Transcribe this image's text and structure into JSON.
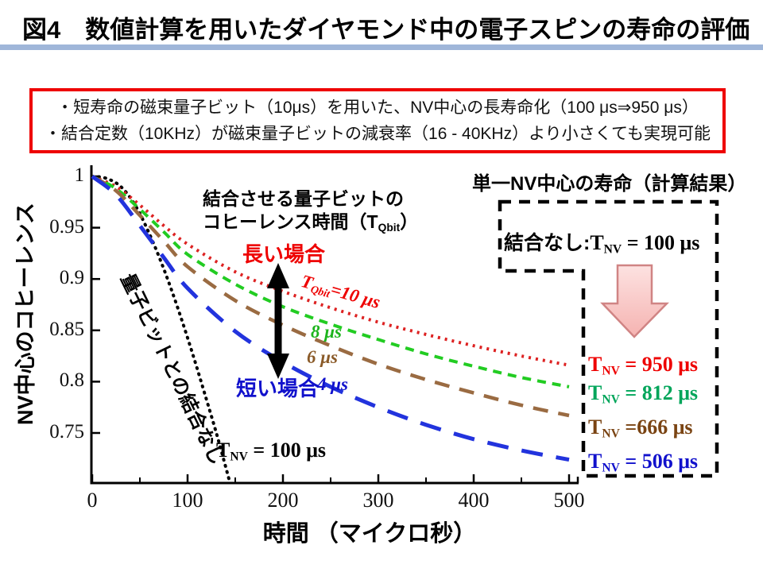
{
  "slide": {
    "title": "図4　数値計算を用いたダイヤモンド中の電子スピンの寿命の評価",
    "accent_color": "#9fb6d9"
  },
  "summary_box": {
    "border_color": "#ee0000",
    "line1": "・短寿命の磁束量子ビット（10μs）を用いた、NV中心の長寿命化（100 μs⇒950 μs）",
    "line2": "・結合定数（10KHz）が磁束量子ビットの減衰率（16 - 40KHz）より小さくても実現可能"
  },
  "chart_data": {
    "type": "line",
    "xlabel": "時間 （マイクロ秒）",
    "ylabel": "NV中心のコヒーレンス",
    "xlim": [
      0,
      510
    ],
    "ylim": [
      0.7,
      1.005
    ],
    "xticks": [
      0,
      100,
      200,
      300,
      400,
      500
    ],
    "xticks_minor": [
      50,
      150,
      250,
      350,
      450
    ],
    "yticks": [
      1,
      0.95,
      0.9,
      0.85,
      0.8,
      0.75
    ],
    "ytick_labels": [
      "1",
      "0.95",
      "0.9",
      "0.85",
      "0.8",
      "0.75"
    ],
    "grid": false,
    "series": [
      {
        "name": "量子ビットとの結合なし (TNV = 100 μs)",
        "color": "#000000",
        "dash": "1 7",
        "width": 4,
        "cap": "round",
        "points": [
          [
            0,
            1.0
          ],
          [
            15,
            0.998
          ],
          [
            30,
            0.99
          ],
          [
            45,
            0.972
          ],
          [
            60,
            0.944
          ],
          [
            75,
            0.91
          ],
          [
            90,
            0.871
          ],
          [
            105,
            0.828
          ],
          [
            120,
            0.782
          ],
          [
            132,
            0.744
          ],
          [
            144,
            0.703
          ]
        ]
      },
      {
        "name": "TQbit = 10 μs",
        "result": "TNV = 950 μs",
        "color": "#dd2222",
        "dash": "3 6",
        "width": 4,
        "cap": "butt",
        "points": [
          [
            0,
            1.0
          ],
          [
            25,
            0.99
          ],
          [
            50,
            0.972
          ],
          [
            75,
            0.952
          ],
          [
            100,
            0.934
          ],
          [
            150,
            0.907
          ],
          [
            200,
            0.888
          ],
          [
            250,
            0.872
          ],
          [
            300,
            0.858
          ],
          [
            350,
            0.846
          ],
          [
            400,
            0.835
          ],
          [
            450,
            0.825
          ],
          [
            500,
            0.816
          ]
        ]
      },
      {
        "name": "TQbit = 8 μs",
        "result": "TNV = 812 μs",
        "color": "#22cc22",
        "dash": "11 8",
        "width": 4,
        "cap": "butt",
        "points": [
          [
            0,
            1.0
          ],
          [
            25,
            0.988
          ],
          [
            50,
            0.968
          ],
          [
            75,
            0.946
          ],
          [
            100,
            0.924
          ],
          [
            150,
            0.895
          ],
          [
            200,
            0.873
          ],
          [
            250,
            0.856
          ],
          [
            300,
            0.841
          ],
          [
            350,
            0.827
          ],
          [
            400,
            0.815
          ],
          [
            450,
            0.804
          ],
          [
            500,
            0.795
          ]
        ]
      },
      {
        "name": "TQbit = 6 μs",
        "result": "TNV =666 μs",
        "color": "#9a6b42",
        "dash": "19 13",
        "width": 4.5,
        "cap": "butt",
        "points": [
          [
            0,
            1.0
          ],
          [
            25,
            0.986
          ],
          [
            50,
            0.962
          ],
          [
            75,
            0.937
          ],
          [
            100,
            0.912
          ],
          [
            150,
            0.879
          ],
          [
            200,
            0.855
          ],
          [
            250,
            0.835
          ],
          [
            300,
            0.817
          ],
          [
            350,
            0.802
          ],
          [
            400,
            0.789
          ],
          [
            450,
            0.777
          ],
          [
            500,
            0.767
          ]
        ]
      },
      {
        "name": "TQbit = 4 μs",
        "result": "TNV = 506 μs",
        "color": "#2233dd",
        "dash": "27 17",
        "width": 5,
        "cap": "butt",
        "points": [
          [
            0,
            1.0
          ],
          [
            25,
            0.982
          ],
          [
            50,
            0.952
          ],
          [
            75,
            0.921
          ],
          [
            100,
            0.891
          ],
          [
            150,
            0.849
          ],
          [
            200,
            0.819
          ],
          [
            250,
            0.795
          ],
          [
            300,
            0.775
          ],
          [
            350,
            0.758
          ],
          [
            400,
            0.744
          ],
          [
            450,
            0.733
          ],
          [
            500,
            0.724
          ]
        ]
      }
    ]
  },
  "annotations": {
    "coupling_header_line1": "結合させる量子ビットの",
    "coupling_header_line2_pre": "コヒーレンス時間（T",
    "coupling_header_sub": "Qbit",
    "coupling_header_line2_post": "）",
    "long_case": "長い場合",
    "short_case": "短い場合",
    "tqbit10": {
      "t": "T",
      "sub": "Qbit",
      "rest": "=10 μs"
    },
    "label_8us": "8 μs",
    "label_6us": "6 μs",
    "label_4us": "4 μs",
    "no_coupling_diagonal": "量子ビットとの結合なし",
    "tnv100": {
      "t": "T",
      "sub": "NV",
      "rest": " = 100 μs"
    }
  },
  "right_panel": {
    "header": "単一NV中心の寿命（計算結果）",
    "no_coupling_label": "結合なし:",
    "no_coupling_formula": {
      "t": "T",
      "sub": "NV",
      "rest": " = 100 μs"
    },
    "arrow_fill": "#f9c9c7",
    "arrow_border": "#d08484",
    "results": [
      {
        "t": "T",
        "sub": "NV",
        "rest": " = 950 μs",
        "color": "#ee0000"
      },
      {
        "t": "T",
        "sub": "NV",
        "rest": " = 812 μs",
        "color": "#00a55a"
      },
      {
        "t": "T",
        "sub": "NV",
        "rest": " =666 μs",
        "color": "#7a4413"
      },
      {
        "t": "T",
        "sub": "NV",
        "rest": " = 506 μs",
        "color": "#1111cc"
      }
    ]
  }
}
